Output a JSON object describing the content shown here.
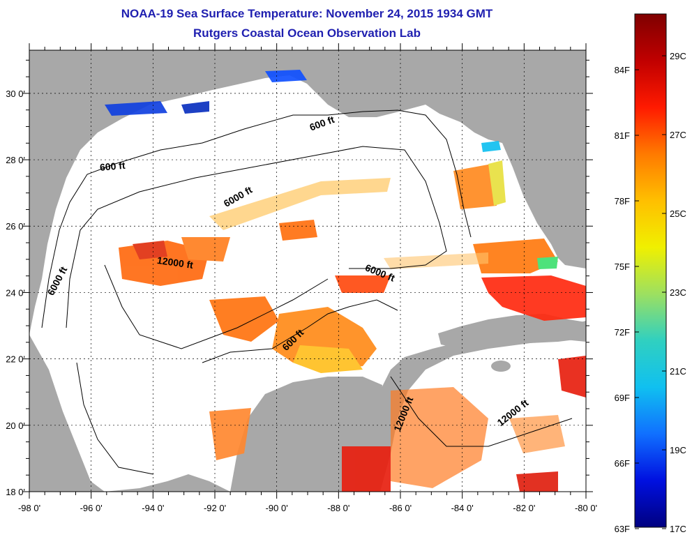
{
  "header": {
    "title_line1": "NOAA-19 Sea Surface Temperature:  November 24, 2015 1934 GMT",
    "title_line2": "Rutgers Coastal Ocean Observation Lab"
  },
  "map": {
    "lon_labels": [
      "-98 0'",
      "-96 0'",
      "-94 0'",
      "-92 0'",
      "-90 0'",
      "-88 0'",
      "-86 0'",
      "-84 0'",
      "-82 0'",
      "-80 0'"
    ],
    "lat_labels": [
      "30 0'",
      "28 0'",
      "26 0'",
      "24 0'",
      "22 0'",
      "20 0'",
      "18 0'"
    ],
    "lon_range": [
      -98,
      -80
    ],
    "lat_range": [
      18,
      31.3
    ],
    "grid": "dotted",
    "land_color": "#a8a8a8",
    "contour_labels": [
      {
        "text": "600 ft",
        "lon": -88.5,
        "lat": 29.0,
        "angle": -20
      },
      {
        "text": "600 ft",
        "lon": -95.3,
        "lat": 27.7,
        "angle": -5
      },
      {
        "text": "6000 ft",
        "lon": -91.2,
        "lat": 26.8,
        "angle": -30
      },
      {
        "text": "12000 ft",
        "lon": -93.3,
        "lat": 24.8,
        "angle": 8
      },
      {
        "text": "6000 ft",
        "lon": -97.0,
        "lat": 24.3,
        "angle": -62
      },
      {
        "text": "6000 ft",
        "lon": -86.7,
        "lat": 24.5,
        "angle": 22
      },
      {
        "text": "600 ft",
        "lon": -89.4,
        "lat": 22.5,
        "angle": -45
      },
      {
        "text": "12000 ft",
        "lon": -85.8,
        "lat": 20.3,
        "angle": -68
      },
      {
        "text": "12000 ft",
        "lon": -82.3,
        "lat": 20.3,
        "angle": -38
      }
    ]
  },
  "colorbar": {
    "gradient": [
      "#7f0000",
      "#c00000",
      "#ff1a00",
      "#ff7a00",
      "#ffbf00",
      "#f0f000",
      "#9de060",
      "#30d0c0",
      "#10c0f0",
      "#1070ff",
      "#0010e0",
      "#000080"
    ],
    "fahrenheit_labels": [
      "84F",
      "81F",
      "78F",
      "75F",
      "72F",
      "69F",
      "66F",
      "63F"
    ],
    "celsius_labels": [
      "29C",
      "27C",
      "25C",
      "23C",
      "21C",
      "19C",
      "17C"
    ]
  }
}
